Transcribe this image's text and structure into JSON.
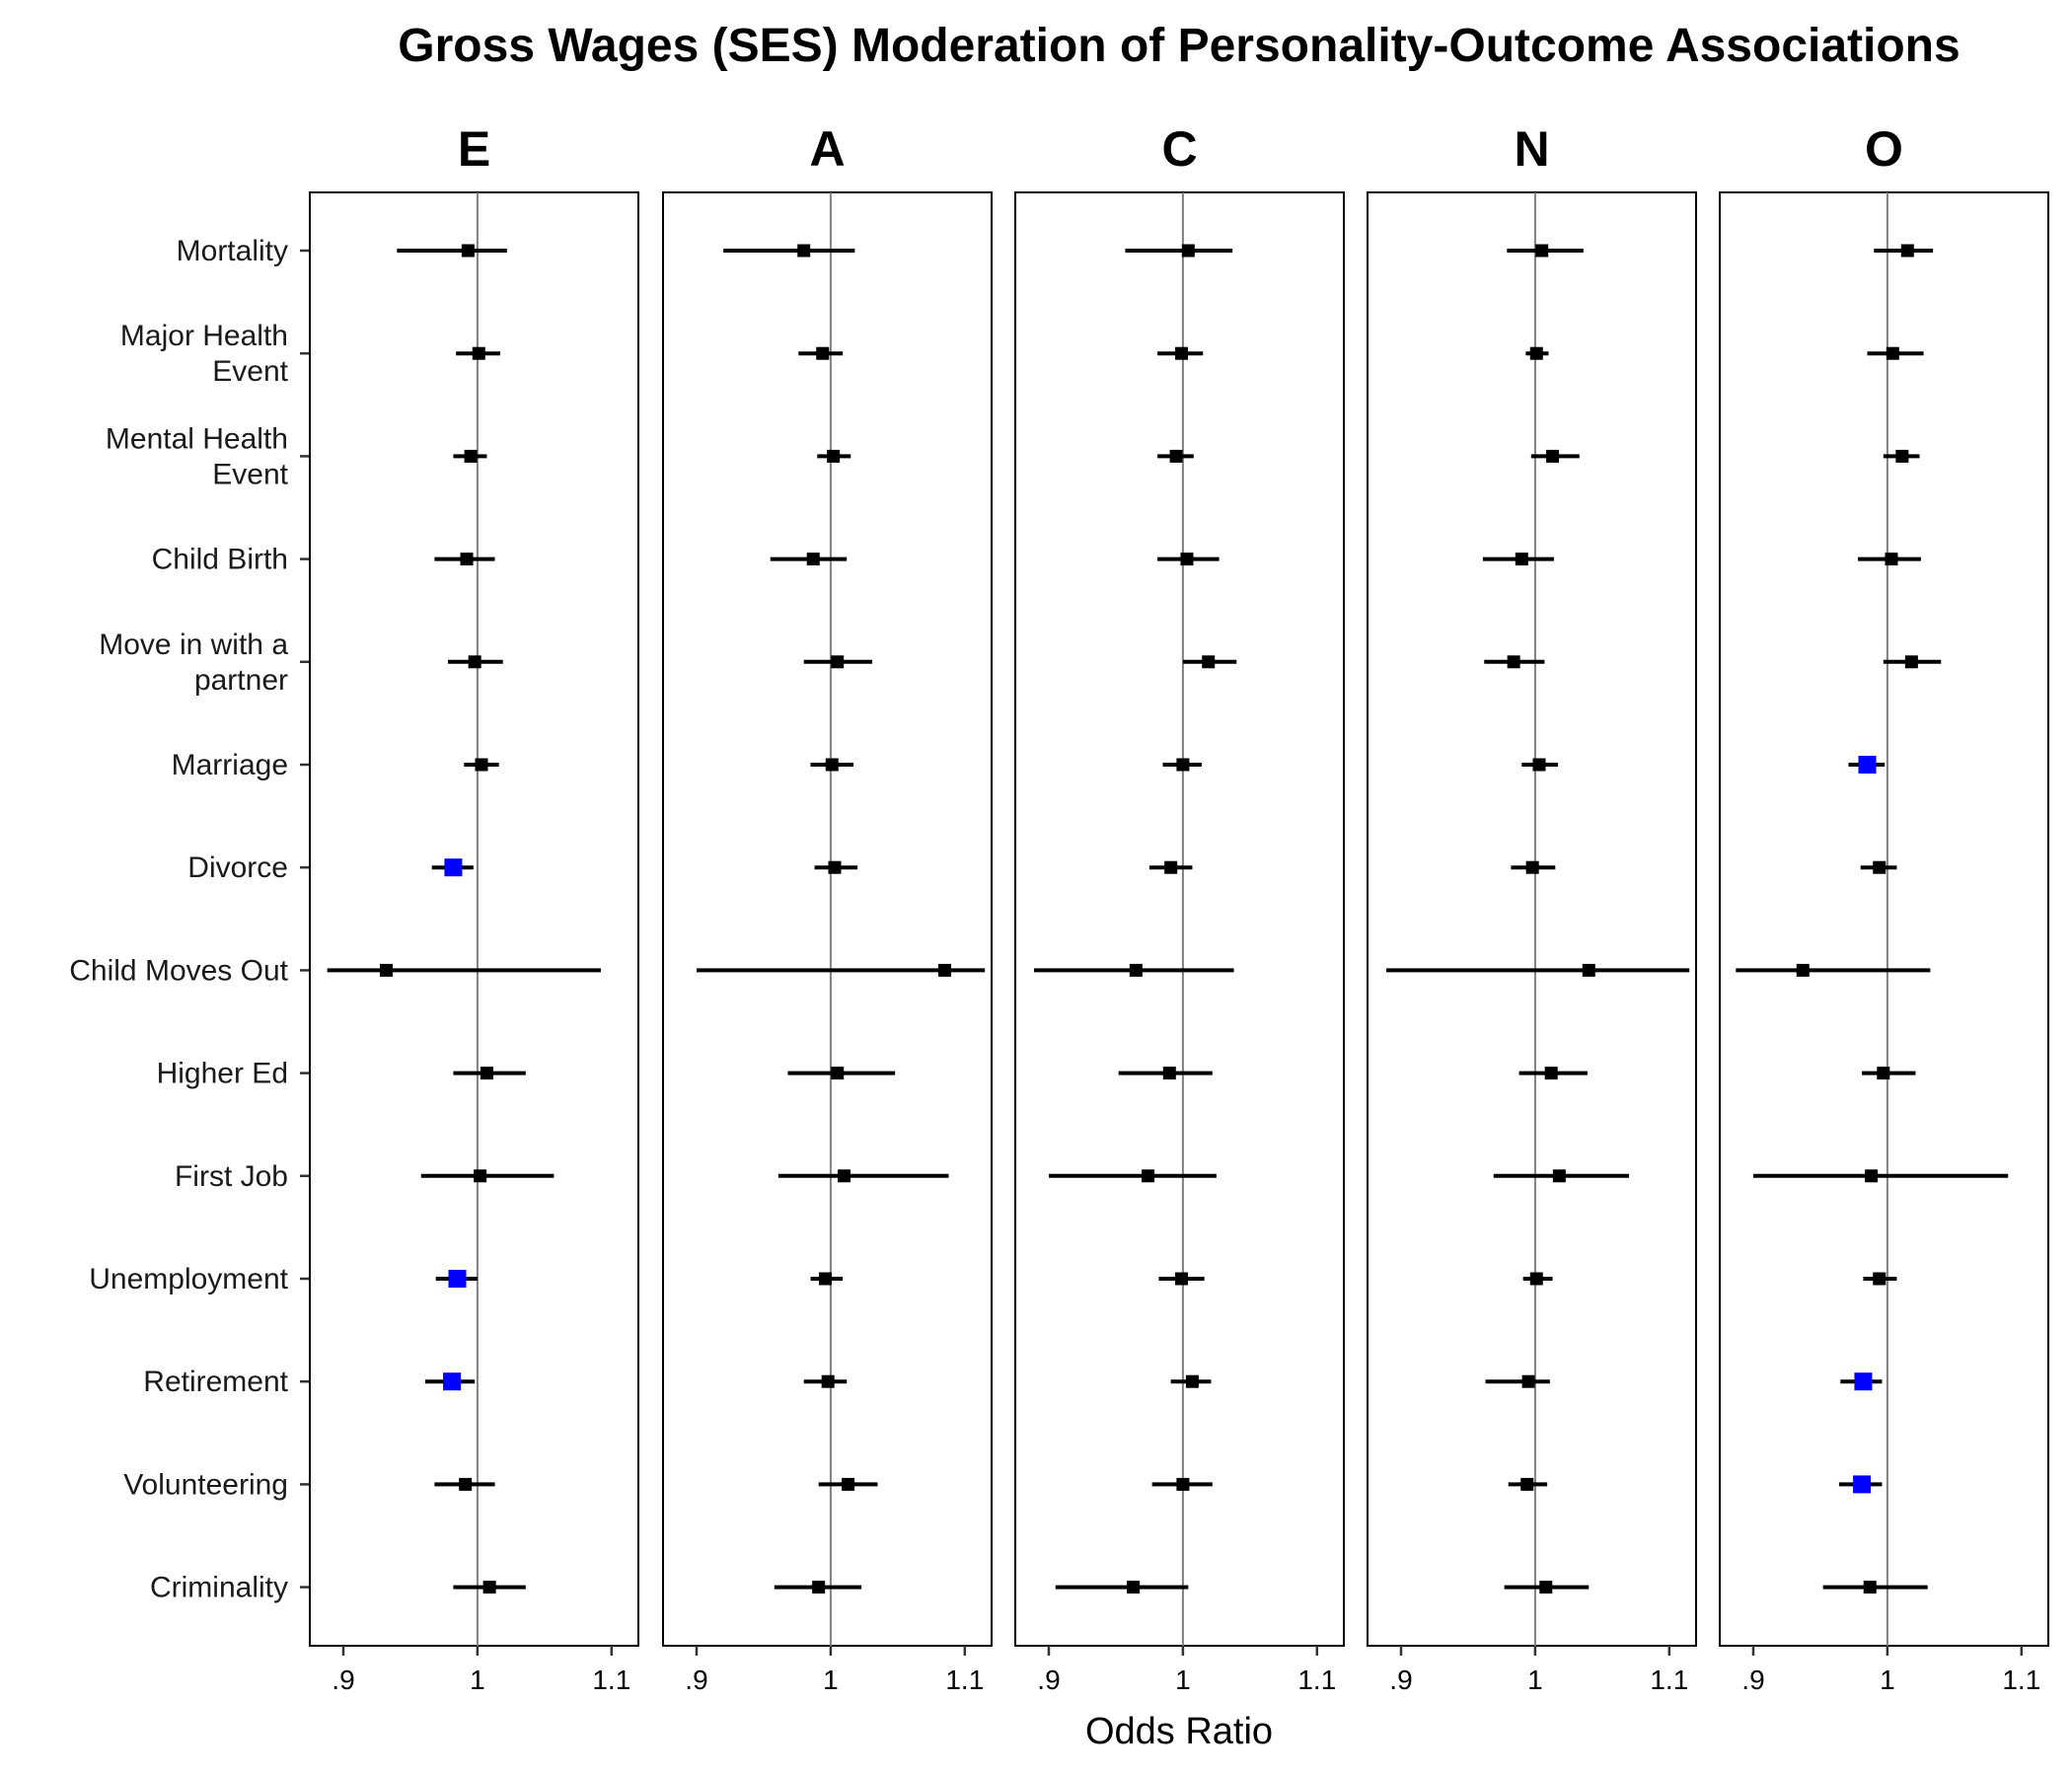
{
  "chart_data": {
    "type": "forest",
    "title": "Gross Wages (SES) Moderation of Personality-Outcome Associations",
    "xlabel": "Odds Ratio",
    "ylabel": "",
    "xlim": [
      0.875,
      1.12
    ],
    "xticks": [
      0.9,
      1.0,
      1.1
    ],
    "xtick_labels": [
      ".9",
      "1",
      "1.1"
    ],
    "reference_line": 1.0,
    "grid": false,
    "legend": "none",
    "colors": {
      "significant": "#0000ff",
      "nonsignificant": "#000000",
      "reference": "#808080"
    },
    "facets": [
      "E",
      "A",
      "C",
      "N",
      "O"
    ],
    "outcomes": [
      [
        "Mortality"
      ],
      [
        "Major Health",
        "Event"
      ],
      [
        "Mental Health",
        "Event"
      ],
      [
        "Child Birth"
      ],
      [
        "Move in with a",
        "partner"
      ],
      [
        "Marriage"
      ],
      [
        "Divorce"
      ],
      [
        "Child Moves Out"
      ],
      [
        "Higher Ed"
      ],
      [
        "First Job"
      ],
      [
        "Unemployment"
      ],
      [
        "Retirement"
      ],
      [
        "Volunteering"
      ],
      [
        "Criminality"
      ]
    ],
    "series": [
      {
        "name": "E",
        "points": [
          {
            "or": 0.993,
            "lo": 0.94,
            "hi": 1.022,
            "sig": false
          },
          {
            "or": 1.001,
            "lo": 0.984,
            "hi": 1.017,
            "sig": false
          },
          {
            "or": 0.995,
            "lo": 0.982,
            "hi": 1.007,
            "sig": false
          },
          {
            "or": 0.992,
            "lo": 0.968,
            "hi": 1.013,
            "sig": false
          },
          {
            "or": 0.998,
            "lo": 0.978,
            "hi": 1.019,
            "sig": false
          },
          {
            "or": 1.003,
            "lo": 0.99,
            "hi": 1.016,
            "sig": false
          },
          {
            "or": 0.982,
            "lo": 0.966,
            "hi": 0.997,
            "sig": true
          },
          {
            "or": 0.932,
            "lo": 0.888,
            "hi": 1.092,
            "sig": false
          },
          {
            "or": 1.007,
            "lo": 0.982,
            "hi": 1.036,
            "sig": false
          },
          {
            "or": 1.002,
            "lo": 0.958,
            "hi": 1.057,
            "sig": false
          },
          {
            "or": 0.985,
            "lo": 0.969,
            "hi": 1.0,
            "sig": true
          },
          {
            "or": 0.981,
            "lo": 0.961,
            "hi": 0.998,
            "sig": true
          },
          {
            "or": 0.991,
            "lo": 0.968,
            "hi": 1.013,
            "sig": false
          },
          {
            "or": 1.009,
            "lo": 0.982,
            "hi": 1.036,
            "sig": false
          }
        ]
      },
      {
        "name": "A",
        "points": [
          {
            "or": 0.98,
            "lo": 0.92,
            "hi": 1.018,
            "sig": false
          },
          {
            "or": 0.994,
            "lo": 0.976,
            "hi": 1.009,
            "sig": false
          },
          {
            "or": 1.002,
            "lo": 0.99,
            "hi": 1.015,
            "sig": false
          },
          {
            "or": 0.987,
            "lo": 0.955,
            "hi": 1.012,
            "sig": false
          },
          {
            "or": 1.005,
            "lo": 0.98,
            "hi": 1.031,
            "sig": false
          },
          {
            "or": 1.001,
            "lo": 0.985,
            "hi": 1.017,
            "sig": false
          },
          {
            "or": 1.003,
            "lo": 0.988,
            "hi": 1.02,
            "sig": false
          },
          {
            "or": 1.085,
            "lo": 0.9,
            "hi": 1.115,
            "sig": false
          },
          {
            "or": 1.005,
            "lo": 0.968,
            "hi": 1.048,
            "sig": false
          },
          {
            "or": 1.01,
            "lo": 0.961,
            "hi": 1.088,
            "sig": false
          },
          {
            "or": 0.996,
            "lo": 0.985,
            "hi": 1.009,
            "sig": false
          },
          {
            "or": 0.998,
            "lo": 0.98,
            "hi": 1.012,
            "sig": false
          },
          {
            "or": 1.013,
            "lo": 0.991,
            "hi": 1.035,
            "sig": false
          },
          {
            "or": 0.991,
            "lo": 0.958,
            "hi": 1.023,
            "sig": false
          }
        ]
      },
      {
        "name": "C",
        "points": [
          {
            "or": 1.004,
            "lo": 0.957,
            "hi": 1.037,
            "sig": false
          },
          {
            "or": 0.999,
            "lo": 0.981,
            "hi": 1.015,
            "sig": false
          },
          {
            "or": 0.995,
            "lo": 0.981,
            "hi": 1.008,
            "sig": false
          },
          {
            "or": 1.003,
            "lo": 0.981,
            "hi": 1.027,
            "sig": false
          },
          {
            "or": 1.019,
            "lo": 1.0,
            "hi": 1.04,
            "sig": false
          },
          {
            "or": 1.0,
            "lo": 0.985,
            "hi": 1.014,
            "sig": false
          },
          {
            "or": 0.991,
            "lo": 0.975,
            "hi": 1.007,
            "sig": false
          },
          {
            "or": 0.965,
            "lo": 0.889,
            "hi": 1.038,
            "sig": false
          },
          {
            "or": 0.99,
            "lo": 0.952,
            "hi": 1.022,
            "sig": false
          },
          {
            "or": 0.974,
            "lo": 0.9,
            "hi": 1.025,
            "sig": false
          },
          {
            "or": 0.999,
            "lo": 0.982,
            "hi": 1.016,
            "sig": false
          },
          {
            "or": 1.007,
            "lo": 0.991,
            "hi": 1.021,
            "sig": false
          },
          {
            "or": 1.0,
            "lo": 0.977,
            "hi": 1.022,
            "sig": false
          },
          {
            "or": 0.963,
            "lo": 0.905,
            "hi": 1.004,
            "sig": false
          }
        ]
      },
      {
        "name": "N",
        "points": [
          {
            "or": 1.005,
            "lo": 0.979,
            "hi": 1.036,
            "sig": false
          },
          {
            "or": 1.001,
            "lo": 0.993,
            "hi": 1.01,
            "sig": false
          },
          {
            "or": 1.013,
            "lo": 0.997,
            "hi": 1.033,
            "sig": false
          },
          {
            "or": 0.99,
            "lo": 0.961,
            "hi": 1.014,
            "sig": false
          },
          {
            "or": 0.984,
            "lo": 0.962,
            "hi": 1.007,
            "sig": false
          },
          {
            "or": 1.003,
            "lo": 0.99,
            "hi": 1.017,
            "sig": false
          },
          {
            "or": 0.998,
            "lo": 0.982,
            "hi": 1.015,
            "sig": false
          },
          {
            "or": 1.04,
            "lo": 0.889,
            "hi": 1.115,
            "sig": false
          },
          {
            "or": 1.012,
            "lo": 0.988,
            "hi": 1.039,
            "sig": false
          },
          {
            "or": 1.018,
            "lo": 0.969,
            "hi": 1.07,
            "sig": false
          },
          {
            "or": 1.001,
            "lo": 0.991,
            "hi": 1.013,
            "sig": false
          },
          {
            "or": 0.995,
            "lo": 0.963,
            "hi": 1.011,
            "sig": false
          },
          {
            "or": 0.994,
            "lo": 0.98,
            "hi": 1.009,
            "sig": false
          },
          {
            "or": 1.008,
            "lo": 0.977,
            "hi": 1.04,
            "sig": false
          }
        ]
      },
      {
        "name": "O",
        "points": [
          {
            "or": 1.015,
            "lo": 0.99,
            "hi": 1.034,
            "sig": false
          },
          {
            "or": 1.004,
            "lo": 0.985,
            "hi": 1.027,
            "sig": false
          },
          {
            "or": 1.011,
            "lo": 0.997,
            "hi": 1.024,
            "sig": false
          },
          {
            "or": 1.003,
            "lo": 0.978,
            "hi": 1.025,
            "sig": false
          },
          {
            "or": 1.018,
            "lo": 0.997,
            "hi": 1.04,
            "sig": false
          },
          {
            "or": 0.985,
            "lo": 0.971,
            "hi": 0.998,
            "sig": true
          },
          {
            "or": 0.994,
            "lo": 0.98,
            "hi": 1.007,
            "sig": false
          },
          {
            "or": 0.937,
            "lo": 0.887,
            "hi": 1.032,
            "sig": false
          },
          {
            "or": 0.997,
            "lo": 0.981,
            "hi": 1.021,
            "sig": false
          },
          {
            "or": 0.988,
            "lo": 0.9,
            "hi": 1.09,
            "sig": false
          },
          {
            "or": 0.994,
            "lo": 0.982,
            "hi": 1.007,
            "sig": false
          },
          {
            "or": 0.982,
            "lo": 0.965,
            "hi": 0.996,
            "sig": true
          },
          {
            "or": 0.981,
            "lo": 0.964,
            "hi": 0.996,
            "sig": true
          },
          {
            "or": 0.987,
            "lo": 0.952,
            "hi": 1.03,
            "sig": false
          }
        ]
      }
    ]
  }
}
